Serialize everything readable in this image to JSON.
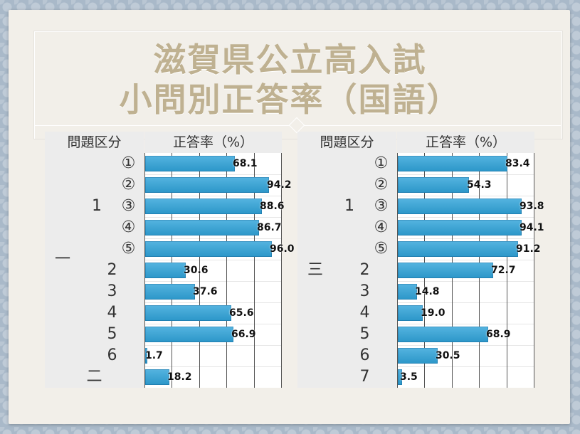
{
  "title_line1": "滋賀県公立高入試",
  "title_line2": "小問別正答率（国語）",
  "chart_data": [
    {
      "type": "bar",
      "header_category": "問題区分",
      "header_value": "正答率（%）",
      "xlim": [
        0,
        100
      ],
      "groups": [
        {
          "major": "一",
          "rows": [
            {
              "sub": "1",
              "label": "①",
              "value": 68.1
            },
            {
              "sub": "1",
              "label": "②",
              "value": 94.2
            },
            {
              "sub": "1",
              "label": "③",
              "value": 88.6
            },
            {
              "sub": "1",
              "label": "④",
              "value": 86.7
            },
            {
              "sub": "1",
              "label": "⑤",
              "value": 96.0
            },
            {
              "sub": "",
              "label": "2",
              "value": 30.6
            },
            {
              "sub": "",
              "label": "3",
              "value": 37.6
            },
            {
              "sub": "",
              "label": "4",
              "value": 65.6
            },
            {
              "sub": "",
              "label": "5",
              "value": 66.9
            },
            {
              "sub": "",
              "label": "6",
              "value": 1.7
            }
          ]
        },
        {
          "major": "二",
          "rows": [
            {
              "sub": "",
              "label": "",
              "value": 18.2
            }
          ]
        }
      ]
    },
    {
      "type": "bar",
      "header_category": "問題区分",
      "header_value": "正答率（%）",
      "xlim": [
        0,
        100
      ],
      "groups": [
        {
          "major": "三",
          "rows": [
            {
              "sub": "1",
              "label": "①",
              "value": 83.4
            },
            {
              "sub": "1",
              "label": "②",
              "value": 54.3
            },
            {
              "sub": "1",
              "label": "③",
              "value": 93.8
            },
            {
              "sub": "1",
              "label": "④",
              "value": 94.1
            },
            {
              "sub": "1",
              "label": "⑤",
              "value": 91.2
            },
            {
              "sub": "",
              "label": "2",
              "value": 72.7
            },
            {
              "sub": "",
              "label": "3",
              "value": 14.8
            },
            {
              "sub": "",
              "label": "4",
              "value": 19.0
            },
            {
              "sub": "",
              "label": "5",
              "value": 68.9
            },
            {
              "sub": "",
              "label": "6",
              "value": 30.5
            },
            {
              "sub": "",
              "label": "7",
              "value": 3.5
            }
          ]
        }
      ]
    }
  ],
  "colors": {
    "bar": "#2fa3d9",
    "title": "#bfb191"
  }
}
